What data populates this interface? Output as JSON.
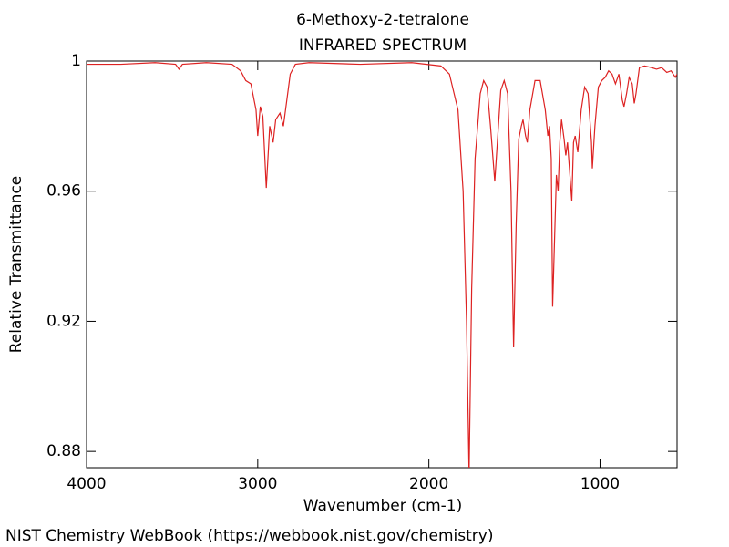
{
  "chart_data": {
    "type": "line",
    "title": "6-Methoxy-2-tetralone",
    "subtitle": "INFRARED SPECTRUM",
    "x_label": "Wavenumber (cm-1)",
    "y_label": "Relative Transmittance",
    "source": "NIST Chemistry WebBook (https://webbook.nist.gov/chemistry)",
    "xlim": [
      4000,
      550
    ],
    "ylim": [
      0.875,
      1.0
    ],
    "xticks": [
      4000,
      3000,
      2000,
      1000
    ],
    "yticks": [
      1,
      0.96,
      0.92,
      0.88
    ],
    "grid": false,
    "series": [
      {
        "name": "6-Methoxy-2-tetralone",
        "color": "#dd2222",
        "x": [
          4000,
          3800,
          3600,
          3480,
          3460,
          3440,
          3300,
          3150,
          3100,
          3070,
          3040,
          3010,
          3000,
          2985,
          2970,
          2950,
          2930,
          2910,
          2895,
          2870,
          2850,
          2830,
          2810,
          2780,
          2700,
          2400,
          2100,
          1930,
          1880,
          1830,
          1800,
          1780,
          1765,
          1750,
          1730,
          1700,
          1680,
          1660,
          1640,
          1615,
          1600,
          1580,
          1560,
          1540,
          1520,
          1505,
          1490,
          1475,
          1460,
          1450,
          1435,
          1425,
          1410,
          1380,
          1350,
          1320,
          1305,
          1295,
          1285,
          1277,
          1255,
          1245,
          1235,
          1225,
          1210,
          1200,
          1190,
          1165,
          1155,
          1145,
          1130,
          1110,
          1090,
          1070,
          1050,
          1045,
          1030,
          1010,
          990,
          970,
          950,
          930,
          910,
          890,
          870,
          860,
          845,
          830,
          812,
          800,
          790,
          770,
          740,
          700,
          670,
          640,
          610,
          585,
          560,
          550
        ],
        "values": [
          0.999,
          0.999,
          0.9995,
          0.999,
          0.9975,
          0.999,
          0.9995,
          0.999,
          0.997,
          0.994,
          0.993,
          0.985,
          0.977,
          0.986,
          0.983,
          0.961,
          0.98,
          0.975,
          0.982,
          0.984,
          0.98,
          0.988,
          0.996,
          0.999,
          0.9995,
          0.999,
          0.9995,
          0.9985,
          0.996,
          0.985,
          0.96,
          0.92,
          0.873,
          0.93,
          0.97,
          0.99,
          0.994,
          0.992,
          0.98,
          0.963,
          0.975,
          0.991,
          0.994,
          0.99,
          0.96,
          0.912,
          0.95,
          0.976,
          0.98,
          0.982,
          0.977,
          0.975,
          0.985,
          0.994,
          0.994,
          0.985,
          0.977,
          0.98,
          0.97,
          0.9245,
          0.965,
          0.96,
          0.975,
          0.982,
          0.976,
          0.971,
          0.975,
          0.957,
          0.975,
          0.977,
          0.972,
          0.985,
          0.992,
          0.99,
          0.975,
          0.967,
          0.98,
          0.992,
          0.994,
          0.995,
          0.997,
          0.996,
          0.993,
          0.996,
          0.988,
          0.986,
          0.99,
          0.995,
          0.993,
          0.987,
          0.99,
          0.998,
          0.9985,
          0.998,
          0.9975,
          0.998,
          0.9965,
          0.997,
          0.995,
          0.996
        ]
      }
    ]
  }
}
